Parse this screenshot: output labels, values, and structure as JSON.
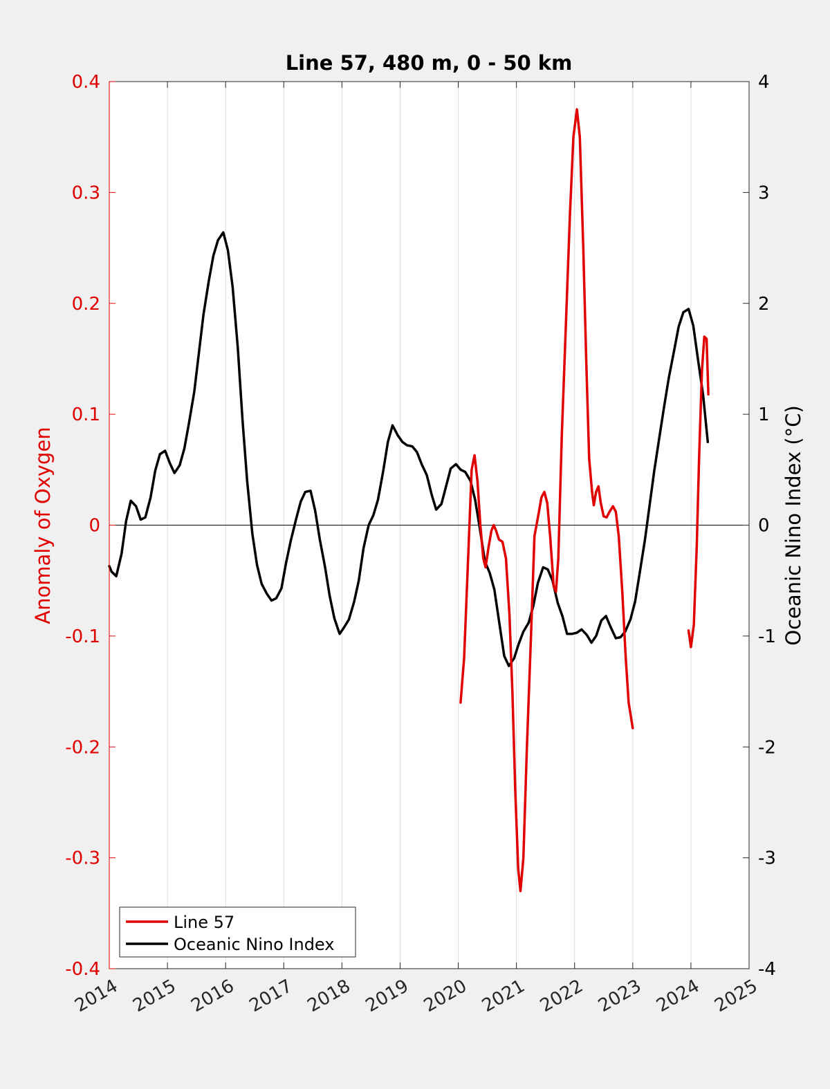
{
  "chart_data": {
    "type": "line",
    "title": "Line 57, 480 m, 0 - 50 km",
    "xlabel": "",
    "ylabel_left": "Anomaly of Oxygen",
    "ylabel_right": "Oceanic Nino Index (°C)",
    "xlim": [
      2014,
      2025
    ],
    "ylim_left": [
      -0.4,
      0.4
    ],
    "ylim_right": [
      -4,
      4
    ],
    "x_ticks": [
      "2014",
      "2015",
      "2016",
      "2017",
      "2018",
      "2019",
      "2020",
      "2021",
      "2022",
      "2023",
      "2024",
      "2025"
    ],
    "y_ticks_left": [
      "-0.4",
      "-0.3",
      "-0.2",
      "-0.1",
      "0",
      "0.1",
      "0.2",
      "0.3",
      "0.4"
    ],
    "y_ticks_right": [
      "-4",
      "-3",
      "-2",
      "-1",
      "0",
      "1",
      "2",
      "3",
      "4"
    ],
    "grid": "vertical",
    "zero_line": true,
    "legend": {
      "position": "bottom-left",
      "entries": [
        "Line 57",
        "Oceanic Nino Index"
      ]
    },
    "colors": {
      "oxygen": "#e00000",
      "oni": "#000000",
      "left_axis": "#e00000",
      "right_axis": "#000000"
    },
    "series": [
      {
        "name": "Line 57",
        "axis": "left",
        "segments": [
          [
            [
              2020.04,
              -0.16
            ],
            [
              2020.1,
              -0.12
            ],
            [
              2020.17,
              -0.03
            ],
            [
              2020.23,
              0.05
            ],
            [
              2020.28,
              0.063
            ],
            [
              2020.33,
              0.04
            ],
            [
              2020.38,
              0.0
            ],
            [
              2020.43,
              -0.03
            ],
            [
              2020.47,
              -0.038
            ],
            [
              2020.52,
              -0.02
            ],
            [
              2020.57,
              -0.005
            ],
            [
              2020.61,
              0.0
            ],
            [
              2020.65,
              -0.005
            ],
            [
              2020.7,
              -0.013
            ],
            [
              2020.76,
              -0.015
            ],
            [
              2020.82,
              -0.03
            ],
            [
              2020.88,
              -0.08
            ],
            [
              2020.93,
              -0.15
            ],
            [
              2020.98,
              -0.24
            ],
            [
              2021.03,
              -0.31
            ],
            [
              2021.07,
              -0.33
            ],
            [
              2021.12,
              -0.3
            ],
            [
              2021.18,
              -0.2
            ],
            [
              2021.25,
              -0.1
            ],
            [
              2021.31,
              -0.01
            ],
            [
              2021.38,
              0.01
            ],
            [
              2021.43,
              0.025
            ],
            [
              2021.48,
              0.03
            ],
            [
              2021.53,
              0.02
            ],
            [
              2021.58,
              -0.01
            ],
            [
              2021.64,
              -0.055
            ],
            [
              2021.68,
              -0.06
            ],
            [
              2021.72,
              -0.03
            ],
            [
              2021.78,
              0.08
            ],
            [
              2021.85,
              0.18
            ],
            [
              2021.92,
              0.28
            ],
            [
              2021.98,
              0.35
            ],
            [
              2022.04,
              0.375
            ],
            [
              2022.09,
              0.35
            ],
            [
              2022.15,
              0.25
            ],
            [
              2022.2,
              0.15
            ],
            [
              2022.25,
              0.06
            ],
            [
              2022.3,
              0.03
            ],
            [
              2022.33,
              0.018
            ],
            [
              2022.37,
              0.03
            ],
            [
              2022.41,
              0.035
            ],
            [
              2022.45,
              0.02
            ],
            [
              2022.5,
              0.008
            ],
            [
              2022.55,
              0.007
            ],
            [
              2022.6,
              0.012
            ],
            [
              2022.66,
              0.017
            ],
            [
              2022.71,
              0.012
            ],
            [
              2022.76,
              -0.01
            ],
            [
              2022.82,
              -0.06
            ],
            [
              2022.88,
              -0.12
            ],
            [
              2022.93,
              -0.16
            ],
            [
              2023.0,
              -0.183
            ]
          ],
          [
            [
              2023.96,
              -0.095
            ],
            [
              2024.0,
              -0.11
            ],
            [
              2024.05,
              -0.09
            ],
            [
              2024.1,
              -0.02
            ],
            [
              2024.14,
              0.06
            ],
            [
              2024.19,
              0.14
            ],
            [
              2024.23,
              0.17
            ],
            [
              2024.27,
              0.168
            ],
            [
              2024.3,
              0.118
            ]
          ]
        ]
      },
      {
        "name": "Oceanic Nino Index",
        "axis": "right",
        "segments": [
          [
            [
              2014.0,
              -0.37
            ],
            [
              2014.04,
              -0.42
            ],
            [
              2014.12,
              -0.46
            ],
            [
              2014.21,
              -0.26
            ],
            [
              2014.29,
              0.04
            ],
            [
              2014.37,
              0.22
            ],
            [
              2014.46,
              0.17
            ],
            [
              2014.54,
              0.05
            ],
            [
              2014.62,
              0.07
            ],
            [
              2014.71,
              0.25
            ],
            [
              2014.79,
              0.49
            ],
            [
              2014.87,
              0.64
            ],
            [
              2014.96,
              0.67
            ],
            [
              2015.04,
              0.56
            ],
            [
              2015.12,
              0.47
            ],
            [
              2015.21,
              0.54
            ],
            [
              2015.29,
              0.69
            ],
            [
              2015.37,
              0.92
            ],
            [
              2015.46,
              1.2
            ],
            [
              2015.54,
              1.55
            ],
            [
              2015.62,
              1.9
            ],
            [
              2015.71,
              2.2
            ],
            [
              2015.79,
              2.43
            ],
            [
              2015.87,
              2.57
            ],
            [
              2015.96,
              2.64
            ],
            [
              2016.04,
              2.48
            ],
            [
              2016.12,
              2.15
            ],
            [
              2016.21,
              1.6
            ],
            [
              2016.29,
              0.95
            ],
            [
              2016.37,
              0.4
            ],
            [
              2016.46,
              -0.08
            ],
            [
              2016.54,
              -0.36
            ],
            [
              2016.62,
              -0.53
            ],
            [
              2016.71,
              -0.62
            ],
            [
              2016.79,
              -0.68
            ],
            [
              2016.87,
              -0.66
            ],
            [
              2016.96,
              -0.57
            ],
            [
              2017.04,
              -0.34
            ],
            [
              2017.12,
              -0.14
            ],
            [
              2017.21,
              0.05
            ],
            [
              2017.29,
              0.21
            ],
            [
              2017.37,
              0.3
            ],
            [
              2017.46,
              0.31
            ],
            [
              2017.54,
              0.13
            ],
            [
              2017.62,
              -0.13
            ],
            [
              2017.71,
              -0.38
            ],
            [
              2017.79,
              -0.64
            ],
            [
              2017.87,
              -0.84
            ],
            [
              2017.96,
              -0.98
            ],
            [
              2018.04,
              -0.92
            ],
            [
              2018.12,
              -0.85
            ],
            [
              2018.21,
              -0.69
            ],
            [
              2018.29,
              -0.5
            ],
            [
              2018.37,
              -0.21
            ],
            [
              2018.46,
              0.0
            ],
            [
              2018.54,
              0.09
            ],
            [
              2018.62,
              0.23
            ],
            [
              2018.71,
              0.49
            ],
            [
              2018.79,
              0.75
            ],
            [
              2018.87,
              0.9
            ],
            [
              2018.96,
              0.81
            ],
            [
              2019.04,
              0.75
            ],
            [
              2019.12,
              0.72
            ],
            [
              2019.21,
              0.71
            ],
            [
              2019.29,
              0.66
            ],
            [
              2019.37,
              0.55
            ],
            [
              2019.46,
              0.45
            ],
            [
              2019.54,
              0.28
            ],
            [
              2019.62,
              0.14
            ],
            [
              2019.71,
              0.19
            ],
            [
              2019.79,
              0.35
            ],
            [
              2019.87,
              0.51
            ],
            [
              2019.96,
              0.55
            ],
            [
              2020.04,
              0.5
            ],
            [
              2020.12,
              0.48
            ],
            [
              2020.21,
              0.4
            ],
            [
              2020.29,
              0.23
            ],
            [
              2020.37,
              -0.03
            ],
            [
              2020.46,
              -0.33
            ],
            [
              2020.54,
              -0.43
            ],
            [
              2020.62,
              -0.58
            ],
            [
              2020.71,
              -0.9
            ],
            [
              2020.79,
              -1.18
            ],
            [
              2020.87,
              -1.27
            ],
            [
              2020.96,
              -1.2
            ],
            [
              2021.04,
              -1.07
            ],
            [
              2021.12,
              -0.96
            ],
            [
              2021.21,
              -0.88
            ],
            [
              2021.29,
              -0.73
            ],
            [
              2021.37,
              -0.52
            ],
            [
              2021.46,
              -0.38
            ],
            [
              2021.54,
              -0.4
            ],
            [
              2021.62,
              -0.5
            ],
            [
              2021.71,
              -0.7
            ],
            [
              2021.79,
              -0.82
            ],
            [
              2021.87,
              -0.98
            ],
            [
              2021.96,
              -0.98
            ],
            [
              2022.04,
              -0.97
            ],
            [
              2022.12,
              -0.94
            ],
            [
              2022.21,
              -0.99
            ],
            [
              2022.29,
              -1.06
            ],
            [
              2022.37,
              -1.0
            ],
            [
              2022.46,
              -0.86
            ],
            [
              2022.54,
              -0.82
            ],
            [
              2022.62,
              -0.92
            ],
            [
              2022.71,
              -1.02
            ],
            [
              2022.79,
              -1.01
            ],
            [
              2022.87,
              -0.96
            ],
            [
              2022.96,
              -0.85
            ],
            [
              2023.04,
              -0.69
            ],
            [
              2023.12,
              -0.43
            ],
            [
              2023.21,
              -0.13
            ],
            [
              2023.29,
              0.18
            ],
            [
              2023.37,
              0.49
            ],
            [
              2023.46,
              0.8
            ],
            [
              2023.54,
              1.07
            ],
            [
              2023.62,
              1.33
            ],
            [
              2023.71,
              1.57
            ],
            [
              2023.79,
              1.79
            ],
            [
              2023.87,
              1.92
            ],
            [
              2023.96,
              1.95
            ],
            [
              2024.04,
              1.8
            ],
            [
              2024.12,
              1.5
            ],
            [
              2024.21,
              1.17
            ],
            [
              2024.29,
              0.75
            ]
          ]
        ]
      }
    ]
  }
}
